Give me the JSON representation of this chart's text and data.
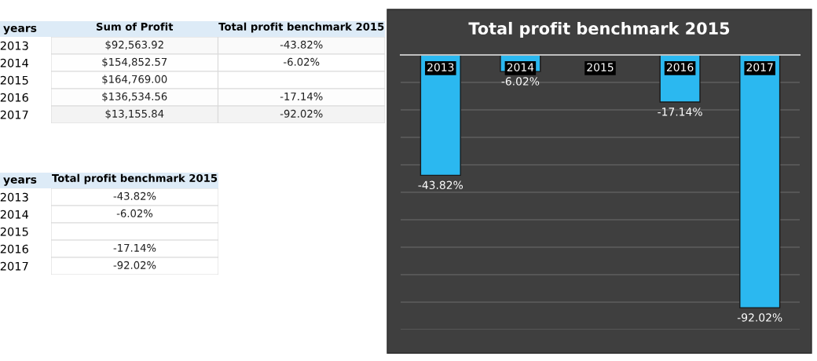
{
  "chart_data": [
    {
      "type": "heatmap",
      "ylabel": "years",
      "categories": [
        "Sum of Profit",
        "Total profit benchmark 2015"
      ],
      "y_categories": [
        "2013",
        "2014",
        "2015",
        "2016",
        "2017"
      ],
      "cells": [
        [
          92563.92,
          -43.82
        ],
        [
          154852.57,
          -6.02
        ],
        [
          164769.0,
          null
        ],
        [
          136534.56,
          -17.14
        ],
        [
          13155.84,
          -92.02
        ]
      ],
      "cell_labels": [
        [
          "$92,563.92",
          "-43.82%"
        ],
        [
          "$154,852.57",
          "-6.02%"
        ],
        [
          "$164,769.00",
          null
        ],
        [
          "$136,534.56",
          "-17.14%"
        ],
        [
          "$13,155.84",
          "-92.02%"
        ]
      ]
    },
    {
      "type": "heatmap",
      "ylabel": "years",
      "categories": [
        "Total profit benchmark 2015"
      ],
      "y_categories": [
        "2013",
        "2014",
        "2015",
        "2016",
        "2017"
      ],
      "cells": [
        [
          -43.82
        ],
        [
          -6.02
        ],
        [
          null
        ],
        [
          -17.14
        ],
        [
          -92.02
        ]
      ],
      "cell_labels": [
        [
          "-43.82%"
        ],
        [
          "-6.02%"
        ],
        [
          null
        ],
        [
          "-17.14%"
        ],
        [
          "-92.02%"
        ]
      ]
    },
    {
      "type": "bar",
      "title": "Total profit benchmark 2015",
      "categories": [
        "2013",
        "2014",
        "2015",
        "2016",
        "2017"
      ],
      "values": [
        -43.82,
        -6.02,
        null,
        -17.14,
        -92.02
      ],
      "color": "#2bb8f0",
      "value_labels": [
        "-43.82%",
        "-6.02%",
        null,
        "-17.14%",
        "-92.02%"
      ],
      "ylim": [
        -100,
        0
      ],
      "yticks": [
        {
          "value": -100,
          "label": null
        },
        {
          "value": -90,
          "label": null
        },
        {
          "value": -80,
          "label": null
        },
        {
          "value": -70,
          "label": null
        },
        {
          "value": -60,
          "label": null
        },
        {
          "value": -50,
          "label": null
        },
        {
          "value": -40,
          "label": null
        },
        {
          "value": -30,
          "label": null
        },
        {
          "value": -20,
          "label": null
        },
        {
          "value": -10,
          "label": null
        }
      ],
      "grid": "y",
      "tick_labels": "x"
    }
  ]
}
